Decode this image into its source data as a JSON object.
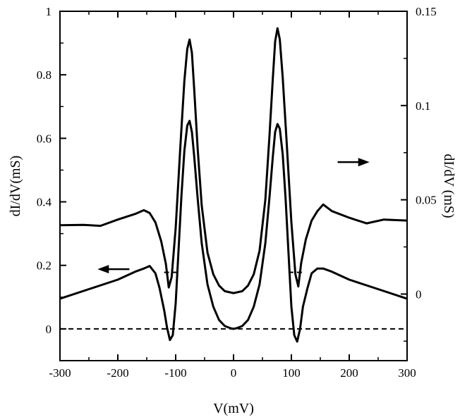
{
  "chart_data": {
    "type": "line",
    "xlabel": "V(mV)",
    "ylabel_left": "dI/dV(mS)",
    "ylabel_right": "dI/dV (mS)",
    "xlim": [
      -300,
      300
    ],
    "ylim_left": [
      -0.1,
      1.0
    ],
    "ylim_right": [
      -0.03533,
      0.15
    ],
    "x_ticks": [
      -300,
      -200,
      -100,
      0,
      100,
      200,
      300
    ],
    "x_tick_labels": [
      "-300",
      "-200",
      "-100",
      "0",
      "100",
      "200",
      "300"
    ],
    "y_left_ticks": [
      0,
      0.2,
      0.4,
      0.6,
      0.8,
      1
    ],
    "y_left_tick_labels": [
      "0",
      "0.2",
      "0.4",
      "0.6",
      "0.8",
      "1"
    ],
    "y_right_ticks": [
      0,
      0.05,
      0.1,
      0.15
    ],
    "y_right_tick_labels": [
      "0",
      "0.05",
      "0.1",
      "0.15"
    ],
    "grid": false,
    "series": [
      {
        "axis": "right",
        "color": "#000000",
        "x": [
          -300,
          -260,
          -230,
          -200,
          -170,
          -155,
          -145,
          -135,
          -125,
          -117,
          -112,
          -107,
          -100,
          -92,
          -85,
          -80,
          -76,
          -72,
          -68,
          -62,
          -55,
          -45,
          -35,
          -25,
          -15,
          0,
          15,
          25,
          35,
          45,
          55,
          62,
          68,
          72,
          76,
          80,
          85,
          92,
          100,
          107,
          112,
          117,
          125,
          135,
          145,
          155,
          170,
          200,
          230,
          260,
          300
        ],
        "y": [
          0.0365,
          0.0367,
          0.0362,
          0.0395,
          0.0425,
          0.0445,
          0.043,
          0.038,
          0.028,
          0.016,
          0.0035,
          0.009,
          0.035,
          0.078,
          0.113,
          0.13,
          0.135,
          0.128,
          0.109,
          0.077,
          0.047,
          0.022,
          0.0105,
          0.0045,
          0.0015,
          0.0005,
          0.0015,
          0.0045,
          0.0105,
          0.023,
          0.05,
          0.083,
          0.115,
          0.134,
          0.141,
          0.135,
          0.115,
          0.08,
          0.038,
          0.0105,
          0.004,
          0.0165,
          0.029,
          0.039,
          0.044,
          0.0475,
          0.044,
          0.0405,
          0.0375,
          0.0395,
          0.039
        ]
      },
      {
        "axis": "left",
        "color": "#000000",
        "x": [
          -300,
          -250,
          -200,
          -170,
          -155,
          -145,
          -135,
          -128,
          -120,
          -115,
          -110,
          -105,
          -100,
          -95,
          -90,
          -85,
          -80,
          -76,
          -72,
          -68,
          -62,
          -55,
          -45,
          -35,
          -25,
          -15,
          -5,
          0,
          5,
          15,
          25,
          35,
          45,
          55,
          62,
          68,
          72,
          76,
          80,
          85,
          90,
          95,
          100,
          105,
          110,
          115,
          120,
          128,
          135,
          145,
          155,
          170,
          200,
          250,
          300
        ],
        "y": [
          0.095,
          0.125,
          0.155,
          0.18,
          0.19,
          0.198,
          0.175,
          0.13,
          0.06,
          0.005,
          -0.035,
          -0.02,
          0.08,
          0.25,
          0.42,
          0.56,
          0.64,
          0.655,
          0.62,
          0.545,
          0.41,
          0.27,
          0.14,
          0.07,
          0.028,
          0.009,
          0.002,
          0.0,
          0.002,
          0.009,
          0.028,
          0.07,
          0.14,
          0.27,
          0.41,
          0.545,
          0.62,
          0.645,
          0.63,
          0.55,
          0.41,
          0.24,
          0.07,
          -0.02,
          -0.04,
          0.0,
          0.07,
          0.13,
          0.175,
          0.19,
          0.19,
          0.18,
          0.155,
          0.125,
          0.095
        ]
      }
    ],
    "reference_lines": [
      {
        "axis": "left",
        "y": 0,
        "x_range": [
          -300,
          300
        ],
        "style": "dashed"
      },
      {
        "axis": "left",
        "y": 0.178,
        "x_range": [
          -120,
          -95
        ],
        "style": "dashed"
      },
      {
        "axis": "left",
        "y": 0.178,
        "x_range": [
          95,
          120
        ],
        "style": "dashed"
      }
    ],
    "annotations": [
      {
        "type": "arrow",
        "direction": "left",
        "axis": "left",
        "y": 0.188,
        "x_range": [
          -235,
          -180
        ],
        "meaning": "lower curve uses left axis"
      },
      {
        "type": "arrow",
        "direction": "right",
        "axis": "left",
        "y": 0.525,
        "x_range": [
          180,
          235
        ],
        "meaning": "upper curve uses right axis"
      }
    ]
  }
}
